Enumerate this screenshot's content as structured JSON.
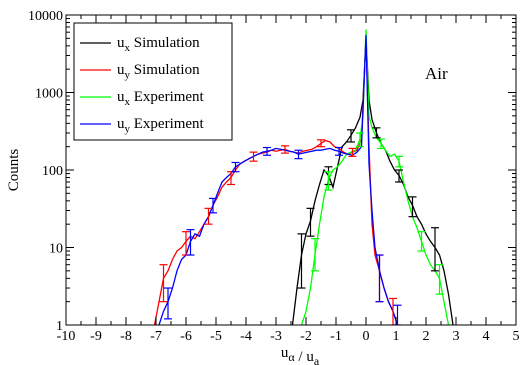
{
  "chart_data": {
    "type": "line",
    "title": "",
    "xlabel": "u_α / u_a",
    "ylabel": "Counts",
    "xlim": [
      -10,
      5
    ],
    "ylim": [
      1,
      10000
    ],
    "yscale": "log",
    "grid": false,
    "legend_position": "top-left",
    "annotation": "Air",
    "x_ticks": [
      -10,
      -9,
      -8,
      -7,
      -6,
      -5,
      -4,
      -3,
      -2,
      -1,
      0,
      1,
      2,
      3,
      4,
      5
    ],
    "y_ticks": [
      1,
      10,
      100,
      1000,
      10000
    ],
    "series": [
      {
        "name": "u_x Simulation",
        "legend_main": "u",
        "legend_sub": "x",
        "legend_suffix": " Simulation",
        "color": "#000000",
        "x": [
          -2.45,
          -2.3,
          -2.15,
          -2.0,
          -1.85,
          -1.7,
          -1.55,
          -1.4,
          -1.25,
          -1.1,
          -0.95,
          -0.8,
          -0.65,
          -0.5,
          -0.35,
          -0.2,
          -0.1,
          0.0,
          0.1,
          0.2,
          0.35,
          0.5,
          0.65,
          0.8,
          0.95,
          1.1,
          1.25,
          1.4,
          1.55,
          1.7,
          1.85,
          2.0,
          2.15,
          2.3,
          2.45,
          2.6,
          2.75,
          2.9
        ],
        "y": [
          1,
          3,
          8,
          15,
          22,
          40,
          65,
          100,
          85,
          60,
          110,
          200,
          230,
          280,
          350,
          480,
          800,
          5000,
          800,
          450,
          300,
          220,
          180,
          130,
          100,
          85,
          65,
          45,
          35,
          25,
          20,
          15,
          12,
          10,
          8,
          5,
          2.5,
          1
        ]
      },
      {
        "name": "u_y Simulation",
        "legend_main": "u",
        "legend_sub": "y",
        "legend_suffix": " Simulation",
        "color": "#ff0000",
        "x": [
          -7.05,
          -6.9,
          -6.75,
          -6.6,
          -6.45,
          -6.3,
          -6.15,
          -6.0,
          -5.85,
          -5.7,
          -5.55,
          -5.4,
          -5.25,
          -5.1,
          -4.95,
          -4.8,
          -4.65,
          -4.5,
          -4.35,
          -4.2,
          -4.05,
          -3.9,
          -3.75,
          -3.6,
          -3.45,
          -3.3,
          -3.15,
          -3.0,
          -2.85,
          -2.7,
          -2.55,
          -2.4,
          -2.25,
          -2.1,
          -1.95,
          -1.8,
          -1.65,
          -1.5,
          -1.35,
          -1.2,
          -1.05,
          -0.9,
          -0.75,
          -0.6,
          -0.45,
          -0.3,
          -0.15,
          0.0,
          0.1,
          0.2,
          0.3,
          0.45,
          0.6,
          0.75,
          0.9,
          1.05
        ],
        "y": [
          1,
          2,
          4,
          5,
          7,
          9,
          10,
          12,
          14,
          13,
          16,
          20,
          25,
          35,
          45,
          60,
          70,
          80,
          100,
          120,
          130,
          140,
          150,
          160,
          165,
          170,
          180,
          175,
          180,
          185,
          175,
          170,
          165,
          175,
          180,
          185,
          200,
          220,
          240,
          230,
          200,
          190,
          170,
          160,
          170,
          180,
          250,
          5000,
          200,
          20,
          8,
          5,
          3,
          2,
          1.5,
          1
        ]
      },
      {
        "name": "u_x Experiment",
        "legend_main": "u",
        "legend_sub": "x",
        "legend_suffix": " Experiment",
        "color": "#00ff00",
        "x": [
          -2.15,
          -2.0,
          -1.85,
          -1.7,
          -1.55,
          -1.4,
          -1.25,
          -1.1,
          -0.95,
          -0.8,
          -0.65,
          -0.5,
          -0.35,
          -0.2,
          -0.1,
          0.0,
          0.1,
          0.2,
          0.35,
          0.5,
          0.65,
          0.8,
          0.95,
          1.1,
          1.25,
          1.4,
          1.55,
          1.7,
          1.85,
          2.0,
          2.15,
          2.3,
          2.45,
          2.6,
          2.75
        ],
        "y": [
          1,
          1.5,
          3,
          8,
          20,
          45,
          75,
          100,
          110,
          130,
          160,
          170,
          180,
          250,
          500,
          6500,
          500,
          350,
          260,
          220,
          180,
          150,
          160,
          130,
          70,
          40,
          25,
          18,
          12,
          8,
          6,
          5,
          4,
          2,
          1
        ]
      },
      {
        "name": "u_y Experiment",
        "legend_main": "u",
        "legend_sub": "y",
        "legend_suffix": " Experiment",
        "color": "#0000ff",
        "x": [
          -6.9,
          -6.75,
          -6.6,
          -6.45,
          -6.3,
          -6.15,
          -6.0,
          -5.85,
          -5.7,
          -5.55,
          -5.4,
          -5.25,
          -5.1,
          -4.95,
          -4.8,
          -4.65,
          -4.5,
          -4.35,
          -4.2,
          -4.05,
          -3.9,
          -3.75,
          -3.6,
          -3.45,
          -3.3,
          -3.15,
          -3.0,
          -2.85,
          -2.7,
          -2.55,
          -2.4,
          -2.25,
          -2.1,
          -1.95,
          -1.8,
          -1.65,
          -1.5,
          -1.35,
          -1.2,
          -1.05,
          -0.9,
          -0.75,
          -0.6,
          -0.45,
          -0.3,
          -0.15,
          0.0,
          0.1,
          0.2,
          0.3,
          0.45,
          0.6,
          0.75,
          0.9,
          1.05
        ],
        "y": [
          1,
          1.5,
          2,
          3,
          5,
          7,
          8,
          12,
          15,
          14,
          20,
          25,
          35,
          50,
          70,
          80,
          90,
          110,
          120,
          130,
          140,
          150,
          160,
          170,
          175,
          180,
          190,
          185,
          180,
          175,
          170,
          160,
          165,
          170,
          175,
          180,
          180,
          185,
          190,
          180,
          175,
          165,
          160,
          155,
          170,
          200,
          5500,
          120,
          30,
          10,
          5,
          3,
          2,
          1.5,
          1
        ]
      }
    ],
    "error_bars": [
      {
        "color": "#000000",
        "x": -2.15,
        "y": 8,
        "lo": 3,
        "hi": 15
      },
      {
        "color": "#000000",
        "x": -1.85,
        "y": 22,
        "lo": 14,
        "hi": 32
      },
      {
        "color": "#000000",
        "x": -1.25,
        "y": 85,
        "lo": 65,
        "hi": 110
      },
      {
        "color": "#000000",
        "x": -0.5,
        "y": 280,
        "lo": 230,
        "hi": 330
      },
      {
        "color": "#000000",
        "x": 0.35,
        "y": 300,
        "lo": 260,
        "hi": 350
      },
      {
        "color": "#000000",
        "x": 1.1,
        "y": 85,
        "lo": 70,
        "hi": 100
      },
      {
        "color": "#000000",
        "x": 1.55,
        "y": 35,
        "lo": 25,
        "hi": 45
      },
      {
        "color": "#000000",
        "x": 2.3,
        "y": 10,
        "lo": 5,
        "hi": 18
      },
      {
        "color": "#ff0000",
        "x": -6.75,
        "y": 4,
        "lo": 2,
        "hi": 6
      },
      {
        "color": "#ff0000",
        "x": -6.0,
        "y": 12,
        "lo": 8,
        "hi": 16
      },
      {
        "color": "#ff0000",
        "x": -5.25,
        "y": 25,
        "lo": 20,
        "hi": 32
      },
      {
        "color": "#ff0000",
        "x": -4.5,
        "y": 80,
        "lo": 65,
        "hi": 95
      },
      {
        "color": "#ff0000",
        "x": -3.75,
        "y": 150,
        "lo": 130,
        "hi": 170
      },
      {
        "color": "#ff0000",
        "x": -2.7,
        "y": 185,
        "lo": 165,
        "hi": 205
      },
      {
        "color": "#ff0000",
        "x": -1.5,
        "y": 220,
        "lo": 200,
        "hi": 245
      },
      {
        "color": "#ff0000",
        "x": -0.45,
        "y": 170,
        "lo": 150,
        "hi": 190
      },
      {
        "color": "#ff0000",
        "x": 0.45,
        "y": 5,
        "lo": 2,
        "hi": 8
      },
      {
        "color": "#ff0000",
        "x": 0.9,
        "y": 1.5,
        "lo": 1,
        "hi": 2.2
      },
      {
        "color": "#00ff00",
        "x": -1.7,
        "y": 8,
        "lo": 5,
        "hi": 13
      },
      {
        "color": "#00ff00",
        "x": -1.25,
        "y": 75,
        "lo": 55,
        "hi": 95
      },
      {
        "color": "#00ff00",
        "x": -0.2,
        "y": 250,
        "lo": 200,
        "hi": 300
      },
      {
        "color": "#00ff00",
        "x": 0.5,
        "y": 220,
        "lo": 190,
        "hi": 250
      },
      {
        "color": "#00ff00",
        "x": 1.1,
        "y": 130,
        "lo": 110,
        "hi": 150
      },
      {
        "color": "#00ff00",
        "x": 1.85,
        "y": 12,
        "lo": 9,
        "hi": 16
      },
      {
        "color": "#00ff00",
        "x": 2.45,
        "y": 4,
        "lo": 2.5,
        "hi": 6
      },
      {
        "color": "#0000ff",
        "x": -6.6,
        "y": 2,
        "lo": 1.2,
        "hi": 3
      },
      {
        "color": "#0000ff",
        "x": -5.85,
        "y": 12,
        "lo": 8,
        "hi": 17
      },
      {
        "color": "#0000ff",
        "x": -5.1,
        "y": 35,
        "lo": 28,
        "hi": 43
      },
      {
        "color": "#0000ff",
        "x": -4.35,
        "y": 110,
        "lo": 95,
        "hi": 125
      },
      {
        "color": "#0000ff",
        "x": -3.3,
        "y": 175,
        "lo": 155,
        "hi": 195
      },
      {
        "color": "#0000ff",
        "x": -2.25,
        "y": 160,
        "lo": 140,
        "hi": 180
      },
      {
        "color": "#0000ff",
        "x": -0.9,
        "y": 175,
        "lo": 155,
        "hi": 195
      },
      {
        "color": "#0000ff",
        "x": 0.45,
        "y": 5,
        "lo": 2,
        "hi": 8
      },
      {
        "color": "#0000ff",
        "x": 1.05,
        "y": 1,
        "lo": 1,
        "hi": 1.8
      }
    ]
  }
}
